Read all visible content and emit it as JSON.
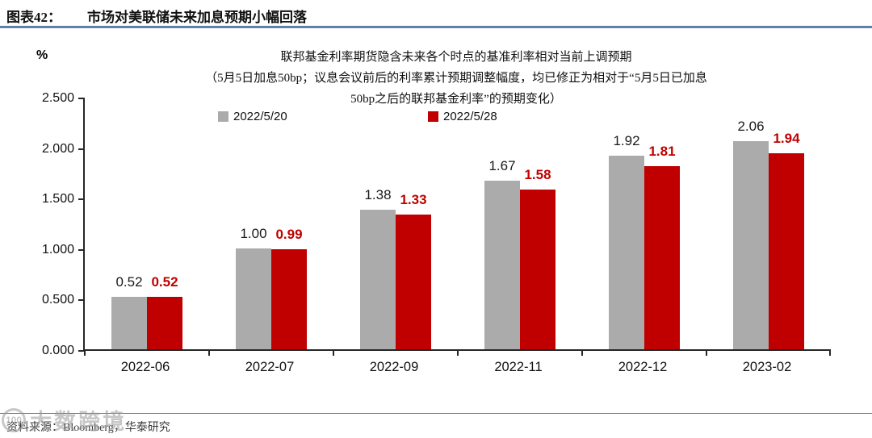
{
  "header": {
    "figure_label": "图表42：",
    "title": "市场对美联储未来加息预期小幅回落"
  },
  "chart_data": {
    "type": "bar",
    "title": "联邦基金利率期货隐含未来各个时点的基准利率相对当前上调预期",
    "subtitle_lines": [
      "联邦基金利率期货隐含未来各个时点的基准利率相对当前上调预期",
      "（5月5日加息50bp；议息会议前后的利率累计预期调整幅度，均已修正为相对于“5月5日已加息",
      "50bp之后的联邦基金利率”的预期变化）"
    ],
    "unit_label": "%",
    "xlabel": "",
    "ylabel": "%",
    "ylim": [
      0,
      2.5
    ],
    "grid": false,
    "legend_position": "top-center",
    "categories": [
      "2022-06",
      "2022-07",
      "2022-09",
      "2022-11",
      "2022-12",
      "2023-02"
    ],
    "series": [
      {
        "name": "2022/5/20",
        "color": "#ababab",
        "label_color": "#1a1a1a",
        "values": [
          0.52,
          1.0,
          1.38,
          1.67,
          1.92,
          2.06
        ],
        "labels": [
          "0.52",
          "1.00",
          "1.38",
          "1.67",
          "1.92",
          "2.06"
        ]
      },
      {
        "name": "2022/5/28",
        "color": "#c00000",
        "label_color": "#c00000",
        "values": [
          0.52,
          0.99,
          1.33,
          1.58,
          1.81,
          1.94
        ],
        "labels": [
          "0.52",
          "0.99",
          "1.33",
          "1.58",
          "1.81",
          "1.94"
        ]
      }
    ],
    "yticks": [
      {
        "v": 0.0,
        "label": "0.000"
      },
      {
        "v": 0.5,
        "label": "0.500"
      },
      {
        "v": 1.0,
        "label": "1.000"
      },
      {
        "v": 1.5,
        "label": "1.500"
      },
      {
        "v": 2.0,
        "label": "2.000"
      },
      {
        "v": 2.5,
        "label": "2.500"
      }
    ]
  },
  "footer": {
    "source": "资料来源：Bloomberg，华泰研究"
  },
  "watermark": {
    "logo_text": "100",
    "text": "大数跨境"
  },
  "colors": {
    "accent_red": "#c00000",
    "bar_gray": "#ababab",
    "rule_blue": "#5d7fa9",
    "axis": "#262626"
  }
}
